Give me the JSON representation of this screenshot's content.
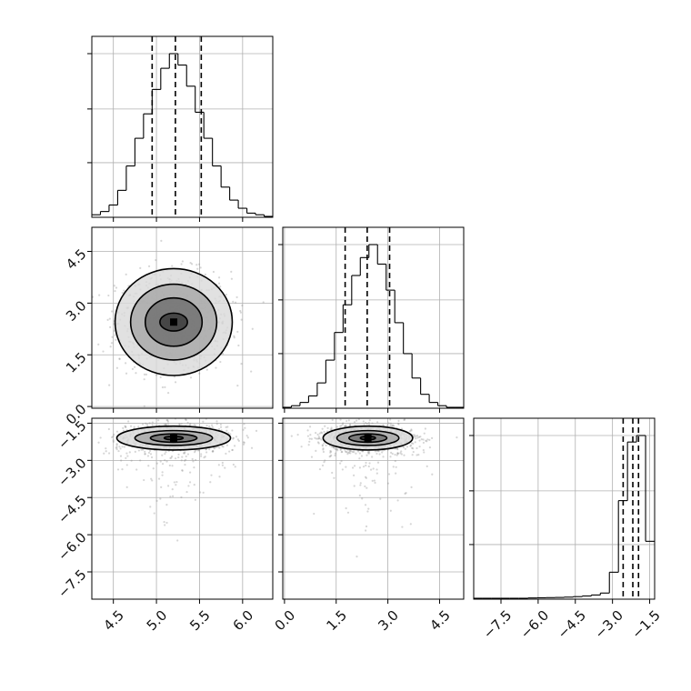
{
  "chart_data": {
    "type": "corner",
    "parameters": 3,
    "grid": true,
    "colors": {
      "line": "#000000",
      "grid": "#b0b0b0",
      "scatter": "#8a8a8a"
    },
    "ticks": {
      "p0": {
        "values": [
          4.5,
          5.0,
          5.5,
          6.0
        ],
        "labels": [
          "4.5",
          "5.0",
          "5.5",
          "6.0"
        ]
      },
      "p1": {
        "values": [
          0.0,
          1.5,
          3.0,
          4.5
        ],
        "labels": [
          "0.0",
          "1.5",
          "3.0",
          "4.5"
        ]
      },
      "p2": {
        "values": [
          -7.5,
          -6.0,
          -4.5,
          -3.0,
          -1.5
        ],
        "labels": [
          "−7.5",
          "−6.0",
          "−4.5",
          "−3.0",
          "−1.5"
        ]
      }
    },
    "ranges": {
      "p0": [
        4.25,
        6.35
      ],
      "p1": [
        -0.05,
        5.2
      ],
      "p2": [
        -8.6,
        -1.3
      ]
    },
    "histograms": [
      {
        "param": "p0",
        "bin_edges": [
          4.25,
          4.35,
          4.45,
          4.55,
          4.65,
          4.75,
          4.85,
          4.95,
          5.05,
          5.15,
          5.25,
          5.35,
          5.45,
          5.55,
          5.65,
          5.75,
          5.85,
          5.95,
          6.05,
          6.15,
          6.25,
          6.35
        ],
        "counts": [
          0.01,
          0.03,
          0.07,
          0.16,
          0.31,
          0.48,
          0.63,
          0.78,
          0.91,
          1.0,
          0.93,
          0.8,
          0.64,
          0.48,
          0.31,
          0.18,
          0.1,
          0.05,
          0.02,
          0.01,
          0.0
        ],
        "quantiles": [
          4.95,
          5.22,
          5.52
        ]
      },
      {
        "param": "p1",
        "bin_edges": [
          -0.05,
          0.2,
          0.45,
          0.7,
          0.95,
          1.2,
          1.45,
          1.7,
          1.95,
          2.2,
          2.45,
          2.7,
          2.95,
          3.2,
          3.45,
          3.7,
          3.95,
          4.2,
          4.45,
          4.7,
          4.95,
          5.2
        ],
        "counts": [
          0.0,
          0.01,
          0.03,
          0.07,
          0.15,
          0.29,
          0.46,
          0.63,
          0.81,
          0.92,
          1.0,
          0.88,
          0.72,
          0.52,
          0.33,
          0.18,
          0.08,
          0.03,
          0.01,
          0.0,
          0.0
        ],
        "quantiles": [
          1.76,
          2.4,
          3.05
        ]
      },
      {
        "param": "p2",
        "bin_edges": [
          -8.6,
          -8.235,
          -7.87,
          -7.505,
          -7.14,
          -6.775,
          -6.41,
          -6.045,
          -5.68,
          -5.315,
          -4.95,
          -4.585,
          -4.22,
          -3.855,
          -3.49,
          -3.125,
          -2.76,
          -2.395,
          -2.03,
          -1.665,
          -1.3
        ],
        "counts": [
          0.0,
          0.0,
          0.0,
          0.0,
          0.0,
          0.0,
          0.002,
          0.003,
          0.004,
          0.005,
          0.007,
          0.01,
          0.014,
          0.02,
          0.032,
          0.16,
          0.6,
          0.96,
          1.0,
          0.35
        ],
        "quantiles": [
          -2.57,
          -2.18,
          -1.95
        ]
      }
    ],
    "pair_plots": [
      {
        "x": "p0",
        "y": "p1",
        "center": [
          5.2,
          2.45
        ],
        "spread": [
          0.33,
          0.72
        ],
        "contours": [
          {
            "rx": 0.16,
            "ry": 0.26
          },
          {
            "rx": 0.33,
            "ry": 0.7
          },
          {
            "rx": 0.5,
            "ry": 1.1
          },
          {
            "rx": 0.68,
            "ry": 1.55
          }
        ]
      },
      {
        "x": "p0",
        "y": "p2",
        "center": [
          5.2,
          -2.1
        ],
        "spread": [
          0.33,
          0.3
        ],
        "contours": [
          {
            "rx": 0.11,
            "ry": 0.07
          },
          {
            "rx": 0.27,
            "ry": 0.17
          },
          {
            "rx": 0.45,
            "ry": 0.3
          },
          {
            "rx": 0.66,
            "ry": 0.48
          }
        ]
      },
      {
        "x": "p1",
        "y": "p2",
        "center": [
          2.42,
          -2.1
        ],
        "spread": [
          0.72,
          0.3
        ],
        "contours": [
          {
            "rx": 0.22,
            "ry": 0.07
          },
          {
            "rx": 0.55,
            "ry": 0.17
          },
          {
            "rx": 0.9,
            "ry": 0.3
          },
          {
            "rx": 1.3,
            "ry": 0.48
          }
        ]
      }
    ]
  }
}
